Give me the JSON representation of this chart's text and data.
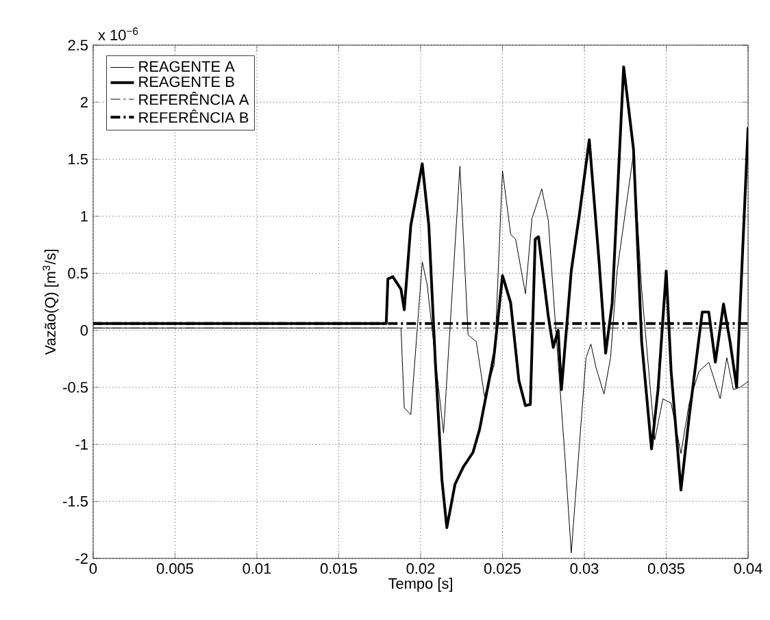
{
  "chart_data": {
    "type": "line",
    "xlabel": "Tempo [s]",
    "ylabel": "Vazão(Q) [m$^{3}$/s]",
    "annotations": [
      "x 10$^{−6}$"
    ],
    "xlim": [
      0,
      0.04
    ],
    "ylim": [
      -2,
      2.5
    ],
    "xticks": [
      0,
      0.005,
      0.01,
      0.015,
      0.02,
      0.025,
      0.03,
      0.035,
      0.04
    ],
    "yticks": [
      -2,
      -1.5,
      -1,
      -0.5,
      0,
      0.5,
      1,
      1.5,
      2,
      2.5
    ],
    "grid": true,
    "legend": "top left",
    "marker": "none",
    "series": [
      {
        "name": "REAGENTE A",
        "color": "#000000",
        "line_style": "solid",
        "x": [
          0,
          0.0188,
          0.019,
          0.0194,
          0.0201,
          0.0204,
          0.0214,
          0.0224,
          0.0229,
          0.0234,
          0.0239,
          0.0245,
          0.025,
          0.0255,
          0.0258,
          0.0264,
          0.0268,
          0.0274,
          0.0278,
          0.0282,
          0.0288,
          0.0292,
          0.0297,
          0.0301,
          0.0304,
          0.0307,
          0.0312,
          0.0316,
          0.032,
          0.033,
          0.0335,
          0.0343,
          0.0348,
          0.0353,
          0.0359,
          0.0364,
          0.037,
          0.0376,
          0.0383,
          0.0387,
          0.0391,
          0.0395,
          0.04
        ],
        "values": [
          0.02,
          0.02,
          -0.68,
          -0.74,
          0.6,
          0.4,
          -0.9,
          1.44,
          -0.04,
          -0.1,
          -0.58,
          -0.3,
          1.4,
          0.84,
          0.8,
          0.32,
          0.98,
          1.24,
          0.96,
          0.12,
          -1.08,
          -1.95,
          -1.0,
          -0.24,
          -0.12,
          -0.32,
          -0.56,
          -0.24,
          0.52,
          1.55,
          0.36,
          -0.96,
          -0.6,
          -0.64,
          -1.08,
          -0.64,
          -0.36,
          -0.28,
          -0.6,
          -0.24,
          -0.52,
          -0.5,
          -0.45
        ]
      },
      {
        "name": "REAGENTE B",
        "color": "#000000",
        "line_style": "solid",
        "x": [
          0,
          0.0179,
          0.018,
          0.0183,
          0.0188,
          0.019,
          0.0194,
          0.0201,
          0.0205,
          0.0209,
          0.0213,
          0.0216,
          0.0221,
          0.0226,
          0.0232,
          0.0236,
          0.0245,
          0.025,
          0.0255,
          0.026,
          0.0264,
          0.0267,
          0.027,
          0.0272,
          0.0278,
          0.0281,
          0.0284,
          0.0286,
          0.0292,
          0.0297,
          0.0303,
          0.0309,
          0.0313,
          0.0317,
          0.0324,
          0.033,
          0.0335,
          0.0341,
          0.0345,
          0.035,
          0.0353,
          0.0359,
          0.0364,
          0.0372,
          0.0376,
          0.038,
          0.0385,
          0.0389,
          0.0393,
          0.04
        ],
        "values": [
          0.06,
          0.06,
          0.45,
          0.47,
          0.36,
          0.18,
          0.92,
          1.46,
          0.92,
          -0.28,
          -1.31,
          -1.73,
          -1.35,
          -1.2,
          -1.07,
          -0.87,
          -0.2,
          0.48,
          0.24,
          -0.44,
          -0.66,
          -0.65,
          0.8,
          0.82,
          0.12,
          -0.15,
          0.0,
          -0.52,
          0.52,
          1.02,
          1.67,
          0.6,
          -0.2,
          0.24,
          2.31,
          1.59,
          -0.1,
          -1.04,
          -0.52,
          0.52,
          -0.36,
          -1.4,
          -0.76,
          0.16,
          0.16,
          -0.28,
          0.23,
          -0.1,
          -0.5,
          1.78
        ]
      },
      {
        "name": "REFERÊNCIA A",
        "color": "#000000",
        "line_style": "dashdot",
        "x": [
          0,
          0.04
        ],
        "values": [
          0.02,
          0.02
        ]
      },
      {
        "name": "REFERÊNCIA B",
        "color": "#000000",
        "line_style": "dashdot",
        "x": [
          0,
          0.04
        ],
        "values": [
          0.06,
          0.06
        ]
      }
    ]
  }
}
